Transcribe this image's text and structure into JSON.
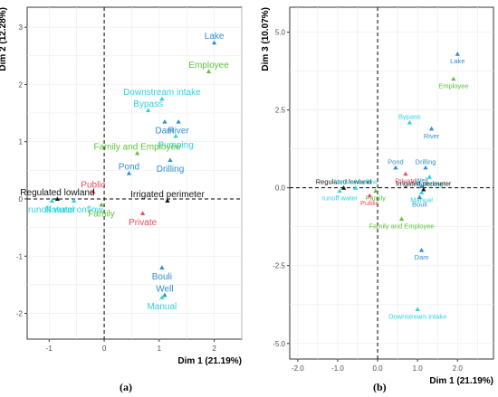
{
  "colors": {
    "blue": "#2f8fd0",
    "green": "#5cc33a",
    "cyan": "#2ed3dd",
    "red": "#e8495f",
    "black": "#111111"
  },
  "chart_data": [
    {
      "type": "scatter",
      "panel_label": "(a)",
      "xlabel": "Dim 1 (21.19%)",
      "ylabel": "Dim 2 (12.28%)",
      "xlim": [
        -1.4,
        2.5
      ],
      "ylim": [
        -2.45,
        3.35
      ],
      "xticks": [
        -1,
        0,
        1,
        2
      ],
      "yticks": [
        -2,
        -1,
        0,
        1,
        2,
        3
      ],
      "grid": true,
      "reference_lines": {
        "x": 0,
        "y": 0
      },
      "points": [
        {
          "label": "Lake",
          "x": 2.0,
          "y": 2.73,
          "color": "blue",
          "pos": "top"
        },
        {
          "label": "Employee",
          "x": 1.9,
          "y": 2.23,
          "color": "green",
          "pos": "top"
        },
        {
          "label": "Downstream intake",
          "x": 1.05,
          "y": 1.75,
          "color": "cyan",
          "pos": "top"
        },
        {
          "label": "Bypass",
          "x": 0.8,
          "y": 1.55,
          "color": "cyan",
          "pos": "top"
        },
        {
          "label": "Dam",
          "x": 1.1,
          "y": 1.35,
          "color": "blue",
          "pos": "bottom"
        },
        {
          "label": "River",
          "x": 1.35,
          "y": 1.35,
          "color": "blue",
          "pos": "bottom"
        },
        {
          "label": "Pumping",
          "x": 1.3,
          "y": 1.1,
          "color": "cyan",
          "pos": "bottom"
        },
        {
          "label": "Family and Employee",
          "x": 0.6,
          "y": 0.8,
          "color": "green",
          "pos": "top"
        },
        {
          "label": "Pond",
          "x": 0.45,
          "y": 0.45,
          "color": "blue",
          "pos": "top"
        },
        {
          "label": "Drilling",
          "x": 1.2,
          "y": 0.68,
          "color": "blue",
          "pos": "bottom"
        },
        {
          "label": "Public",
          "x": -0.2,
          "y": 0.13,
          "color": "red",
          "pos": "top"
        },
        {
          "label": "Regulated lowland",
          "x": -0.85,
          "y": 0.0,
          "color": "black",
          "pos": "top"
        },
        {
          "label": "Irrigated perimeter",
          "x": 1.15,
          "y": -0.03,
          "color": "black",
          "pos": "top"
        },
        {
          "label": "Natural onflow",
          "x": -0.55,
          "y": -0.03,
          "color": "cyan",
          "pos": "bottom"
        },
        {
          "label": "runoff water",
          "x": -0.95,
          "y": -0.03,
          "color": "cyan",
          "pos": "bottom"
        },
        {
          "label": "Family",
          "x": -0.05,
          "y": -0.1,
          "color": "green",
          "pos": "bottom"
        },
        {
          "label": "Private",
          "x": 0.7,
          "y": -0.25,
          "color": "red",
          "pos": "bottom"
        },
        {
          "label": "Bouli",
          "x": 1.05,
          "y": -1.2,
          "color": "blue",
          "pos": "bottom"
        },
        {
          "label": "Well",
          "x": 1.1,
          "y": -1.68,
          "color": "blue",
          "pos": "top"
        },
        {
          "label": "Manual",
          "x": 1.05,
          "y": -1.72,
          "color": "cyan",
          "pos": "bottom"
        }
      ]
    },
    {
      "type": "scatter",
      "panel_label": "(b)",
      "xlabel": "Dim 1 (21.19%)",
      "ylabel": "Dim 3 (10.07%)",
      "xlim": [
        -2.2,
        2.9
      ],
      "ylim": [
        -5.5,
        5.8
      ],
      "xticks": [
        -2,
        -1,
        0,
        1,
        2
      ],
      "yticks": [
        -5.0,
        -2.5,
        0.0,
        2.5,
        5.0
      ],
      "grid": true,
      "reference_lines": {
        "x": 0,
        "y": 0
      },
      "points": [
        {
          "label": "Lake",
          "x": 2.0,
          "y": 4.3,
          "color": "blue",
          "pos": "bottom"
        },
        {
          "label": "Employee",
          "x": 1.9,
          "y": 3.5,
          "color": "green",
          "pos": "bottom"
        },
        {
          "label": "Bypass",
          "x": 0.8,
          "y": 2.1,
          "color": "cyan",
          "pos": "top"
        },
        {
          "label": "River",
          "x": 1.35,
          "y": 1.9,
          "color": "blue",
          "pos": "bottom"
        },
        {
          "label": "Pond",
          "x": 0.45,
          "y": 0.65,
          "color": "blue",
          "pos": "top"
        },
        {
          "label": "Drilling",
          "x": 1.2,
          "y": 0.65,
          "color": "blue",
          "pos": "top"
        },
        {
          "label": "Private",
          "x": 0.7,
          "y": 0.45,
          "color": "red",
          "pos": "bottom"
        },
        {
          "label": "Pumping",
          "x": 1.3,
          "y": 0.35,
          "color": "cyan",
          "pos": "bottom"
        },
        {
          "label": "Regulated lowland",
          "x": -0.85,
          "y": 0.0,
          "color": "black",
          "pos": "top"
        },
        {
          "label": "Natural onflow",
          "x": -0.55,
          "y": 0.0,
          "color": "cyan",
          "pos": "top"
        },
        {
          "label": "Well",
          "x": 1.1,
          "y": 0.05,
          "color": "blue",
          "pos": "top"
        },
        {
          "label": "Irrigated perimeter",
          "x": 1.15,
          "y": -0.05,
          "color": "black",
          "pos": "top"
        },
        {
          "label": "Manual",
          "x": 1.1,
          "y": -0.15,
          "color": "cyan",
          "pos": "bottom"
        },
        {
          "label": "runoff water",
          "x": -0.95,
          "y": -0.1,
          "color": "cyan",
          "pos": "bottom"
        },
        {
          "label": "Family",
          "x": -0.05,
          "y": -0.1,
          "color": "green",
          "pos": "bottom"
        },
        {
          "label": "Public",
          "x": -0.2,
          "y": -0.25,
          "color": "red",
          "pos": "bottom"
        },
        {
          "label": "Bouli",
          "x": 1.05,
          "y": -0.3,
          "color": "blue",
          "pos": "bottom"
        },
        {
          "label": "Family and Employee",
          "x": 0.6,
          "y": -1.0,
          "color": "green",
          "pos": "bottom"
        },
        {
          "label": "Dam",
          "x": 1.1,
          "y": -2.0,
          "color": "blue",
          "pos": "bottom"
        },
        {
          "label": "Downstream intake",
          "x": 1.0,
          "y": -3.9,
          "color": "cyan",
          "pos": "bottom"
        }
      ]
    }
  ]
}
